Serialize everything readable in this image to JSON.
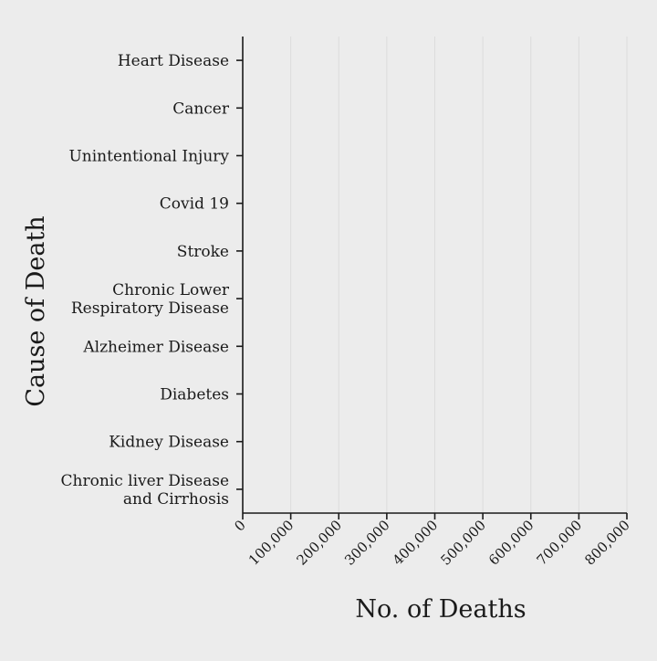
{
  "chart_data": {
    "type": "bar",
    "orientation": "horizontal",
    "title": "",
    "xlabel": "No. of Deaths",
    "ylabel": "Cause of Death",
    "categories": [
      "Heart Disease",
      "Cancer",
      "Unintentional Injury",
      "Covid 19",
      "Stroke",
      "Chronic Lower\nRespiratory Disease",
      "Alzheimer Disease",
      "Diabetes",
      "Kidney Disease",
      "Chronic liver Disease\nand Cirrhosis"
    ],
    "values": [
      0,
      0,
      0,
      0,
      0,
      0,
      0,
      0,
      0,
      0
    ],
    "xlim": [
      0,
      800000
    ],
    "xticks": [
      0,
      100000,
      200000,
      300000,
      400000,
      500000,
      600000,
      700000,
      800000
    ],
    "xtick_labels": [
      "0",
      "100,000",
      "200,000",
      "300,000",
      "400,000",
      "500,000",
      "600,000",
      "700,000",
      "800,000"
    ],
    "grid": true,
    "bar_color": "#4a6fa5",
    "axis_color": "#1a1a1a",
    "grid_color": "#dcdcdc",
    "background": "#ececec"
  }
}
